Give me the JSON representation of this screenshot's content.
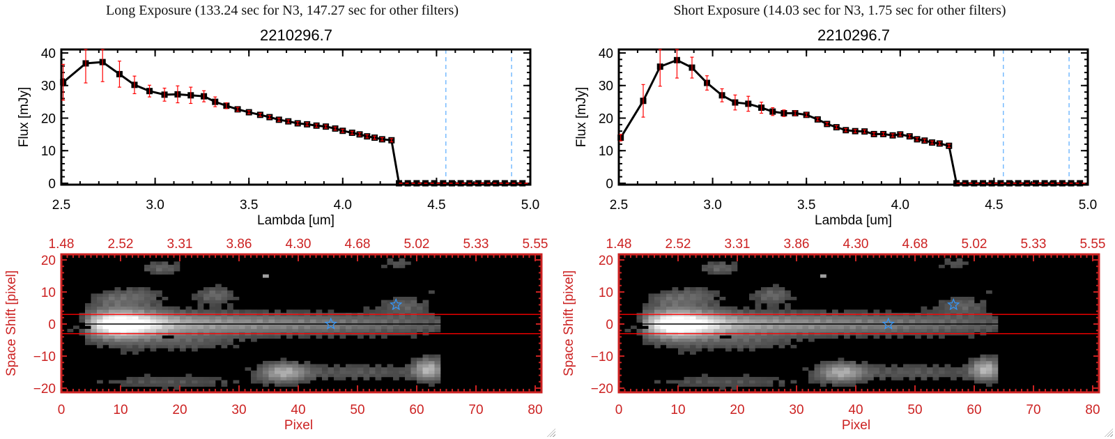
{
  "colors": {
    "axis_top": "#000000",
    "axis_bottom": "#cc2222",
    "errorbar": "#ff0000",
    "dashed": "#3399ff",
    "star": "#3399ff",
    "aperture": "#ff0000"
  },
  "chart_data": [
    {
      "type": "line",
      "panel": "left",
      "exposure_title": "Long Exposure (133.24 sec for N3, 147.27 sec for other filters)",
      "title": "2210296.7",
      "xlabel": "Lambda [um]",
      "ylabel": "Flux [mJy]",
      "xlim": [
        2.5,
        5.0
      ],
      "ylim": [
        -0.43,
        41.07
      ],
      "xticks": [
        "2.5",
        "3.0",
        "3.5",
        "4.0",
        "4.5",
        "5.0"
      ],
      "xtick_values": [
        2.5,
        3.0,
        3.5,
        4.0,
        4.5,
        5.0
      ],
      "yticks": [
        "0",
        "10",
        "20",
        "30",
        "40"
      ],
      "ytick_values": [
        0,
        10,
        20,
        30,
        40
      ],
      "x": [
        2.51,
        2.63,
        2.72,
        2.81,
        2.89,
        2.97,
        3.05,
        3.12,
        3.19,
        3.26,
        3.32,
        3.38,
        3.44,
        3.5,
        3.56,
        3.61,
        3.66,
        3.71,
        3.76,
        3.81,
        3.86,
        3.91,
        3.96,
        4.0,
        4.05,
        4.09,
        4.13,
        4.17,
        4.21,
        4.26,
        4.3,
        4.347,
        4.394,
        4.441,
        4.488,
        4.535,
        4.582,
        4.629,
        4.676,
        4.723,
        4.77,
        4.817,
        4.864,
        4.911,
        4.958
      ],
      "y": [
        31.0,
        36.8,
        37.2,
        33.5,
        30.2,
        28.3,
        27.2,
        27.3,
        27.0,
        26.7,
        25.0,
        23.8,
        22.7,
        21.8,
        21.0,
        20.3,
        19.5,
        19.0,
        18.4,
        18.1,
        17.7,
        17.4,
        16.8,
        16.1,
        15.5,
        15.0,
        14.4,
        14.0,
        13.5,
        13.2,
        0,
        0,
        0,
        0,
        0,
        0,
        0,
        0,
        0,
        0,
        0,
        0,
        0,
        0,
        0
      ],
      "err": [
        5.5,
        6.0,
        6.0,
        4.0,
        2.7,
        1.8,
        2.0,
        2.6,
        2.5,
        1.7,
        1.5,
        0.9,
        0.6,
        0.5,
        0.5,
        0.5,
        0.5,
        0.5,
        0.5,
        0.5,
        0.5,
        0.5,
        0.5,
        0.5,
        0.5,
        0.5,
        0.5,
        0.5,
        0.5,
        0.5,
        0,
        0,
        0,
        0,
        0,
        0,
        0,
        0,
        0,
        0,
        0,
        0,
        0,
        0,
        0
      ],
      "zero_line": [
        4.3,
        5.0
      ],
      "dashed_lines": [
        4.55,
        4.9
      ]
    },
    {
      "type": "line",
      "panel": "right",
      "exposure_title": "Short Exposure (14.03 sec for N3, 1.75 sec for other filters)",
      "title": "2210296.7",
      "xlabel": "Lambda [um]",
      "ylabel": "Flux [mJy]",
      "xlim": [
        2.5,
        5.0
      ],
      "ylim": [
        -0.43,
        41.07
      ],
      "xticks": [
        "2.5",
        "3.0",
        "3.5",
        "4.0",
        "4.5",
        "5.0"
      ],
      "xtick_values": [
        2.5,
        3.0,
        3.5,
        4.0,
        4.5,
        5.0
      ],
      "yticks": [
        "0",
        "10",
        "20",
        "30",
        "40"
      ],
      "ytick_values": [
        0,
        10,
        20,
        30,
        40
      ],
      "x": [
        2.51,
        2.63,
        2.72,
        2.81,
        2.89,
        2.97,
        3.05,
        3.12,
        3.19,
        3.26,
        3.32,
        3.38,
        3.44,
        3.5,
        3.56,
        3.61,
        3.66,
        3.71,
        3.76,
        3.81,
        3.86,
        3.91,
        3.96,
        4.0,
        4.05,
        4.09,
        4.13,
        4.17,
        4.21,
        4.26,
        4.3,
        4.347,
        4.394,
        4.441,
        4.488,
        4.535,
        4.582,
        4.629,
        4.676,
        4.723,
        4.77,
        4.817,
        4.864,
        4.911,
        4.958
      ],
      "y": [
        14.0,
        25.3,
        35.8,
        37.8,
        35.5,
        30.8,
        27.0,
        24.8,
        24.4,
        23.2,
        22.0,
        21.5,
        21.5,
        21.0,
        19.6,
        18.2,
        17.2,
        16.3,
        16.0,
        15.9,
        15.1,
        15.1,
        14.7,
        15.0,
        14.4,
        13.5,
        13.1,
        12.5,
        12.2,
        11.5,
        0,
        0,
        0,
        0,
        0,
        0,
        0,
        0,
        0,
        0,
        0,
        0,
        0,
        0,
        0
      ],
      "err": [
        1.0,
        5.0,
        6.0,
        5.5,
        3.2,
        2.2,
        2.0,
        2.3,
        2.3,
        1.7,
        1.2,
        1.0,
        0.7,
        0.6,
        0.5,
        0.5,
        0.5,
        0.5,
        0.5,
        0.5,
        0.5,
        0.5,
        0.5,
        0.5,
        0.5,
        0.5,
        0.5,
        0.5,
        0.5,
        0.5,
        0,
        0,
        0,
        0,
        0,
        0,
        0,
        0,
        0,
        0,
        0,
        0,
        0,
        0,
        0
      ],
      "zero_line": [
        4.3,
        5.0
      ],
      "dashed_lines": [
        4.55,
        4.9
      ]
    },
    {
      "type": "heatmap",
      "panel": "left",
      "xlabel": "Pixel",
      "ylabel": "Space Shift [pixel]",
      "xlim": [
        0,
        81.06
      ],
      "ylim": [
        -21.3,
        21.74
      ],
      "xticks": [
        "0",
        "10",
        "20",
        "30",
        "40",
        "50",
        "60",
        "70",
        "80"
      ],
      "xtick_values": [
        0,
        10,
        20,
        30,
        40,
        50,
        60,
        70,
        80
      ],
      "top_xticks": [
        "1.48",
        "2.52",
        "3.31",
        "3.86",
        "4.30",
        "4.68",
        "5.02",
        "5.33",
        "5.55"
      ],
      "yticks": [
        "-20",
        "-10",
        "0",
        "10",
        "20"
      ],
      "ytick_values": [
        -20,
        -10,
        0,
        10,
        20
      ],
      "image_extent": {
        "x": [
          0,
          64
        ],
        "y": [
          -21,
          21
        ]
      },
      "aperture": [
        -3,
        3
      ],
      "stars": [
        [
          45.5,
          0
        ],
        [
          56.5,
          6
        ]
      ]
    },
    {
      "type": "heatmap",
      "panel": "right",
      "xlabel": "Pixel",
      "ylabel": "Space Shift [pixel]",
      "xlim": [
        0,
        81.06
      ],
      "ylim": [
        -21.3,
        21.74
      ],
      "xticks": [
        "0",
        "10",
        "20",
        "30",
        "40",
        "50",
        "60",
        "70",
        "80"
      ],
      "xtick_values": [
        0,
        10,
        20,
        30,
        40,
        50,
        60,
        70,
        80
      ],
      "top_xticks": [
        "1.48",
        "2.52",
        "3.31",
        "3.86",
        "4.30",
        "4.68",
        "5.02",
        "5.33",
        "5.55"
      ],
      "yticks": [
        "-20",
        "-10",
        "0",
        "10",
        "20"
      ],
      "ytick_values": [
        -20,
        -10,
        0,
        10,
        20
      ],
      "image_extent": {
        "x": [
          0,
          64
        ],
        "y": [
          -21,
          21
        ]
      },
      "aperture": [
        -3,
        3
      ],
      "stars": [
        [
          45.5,
          0
        ],
        [
          56.5,
          6
        ]
      ]
    }
  ],
  "image_sources": {
    "trace": [
      [
        4,
        0.25
      ],
      [
        7,
        0.75
      ],
      [
        10,
        1.0
      ],
      [
        14,
        0.8
      ],
      [
        20,
        0.6
      ],
      [
        30,
        0.5
      ],
      [
        40,
        0.42
      ],
      [
        50,
        0.35
      ],
      [
        56,
        0.3
      ],
      [
        64,
        0.22
      ]
    ],
    "blobs": [
      [
        10,
        0,
        0.35,
        5,
        5
      ],
      [
        17,
        17.5,
        0.28,
        2.5,
        1.5
      ],
      [
        26,
        9,
        0.3,
        2.5,
        2
      ],
      [
        13,
        9,
        0.22,
        3,
        2
      ],
      [
        8,
        8,
        0.16,
        2,
        1.5
      ],
      [
        34.5,
        15,
        0.55,
        0.5,
        0.5
      ],
      [
        37.5,
        -15,
        0.55,
        2.8,
        2.2
      ],
      [
        62,
        -14,
        0.6,
        1.8,
        2.5
      ],
      [
        50,
        -15,
        0.22,
        9,
        2
      ],
      [
        58,
        6,
        0.25,
        3,
        2
      ],
      [
        57,
        19,
        0.2,
        2,
        1.5
      ],
      [
        18,
        -18,
        0.2,
        10,
        1.5
      ],
      [
        22,
        -6,
        0.18,
        6,
        2
      ],
      [
        63,
        10,
        0.2,
        0.5,
        0.5
      ]
    ],
    "dark": [
      [
        3,
        0
      ],
      [
        4,
        -1
      ],
      [
        18,
        -4
      ]
    ]
  }
}
